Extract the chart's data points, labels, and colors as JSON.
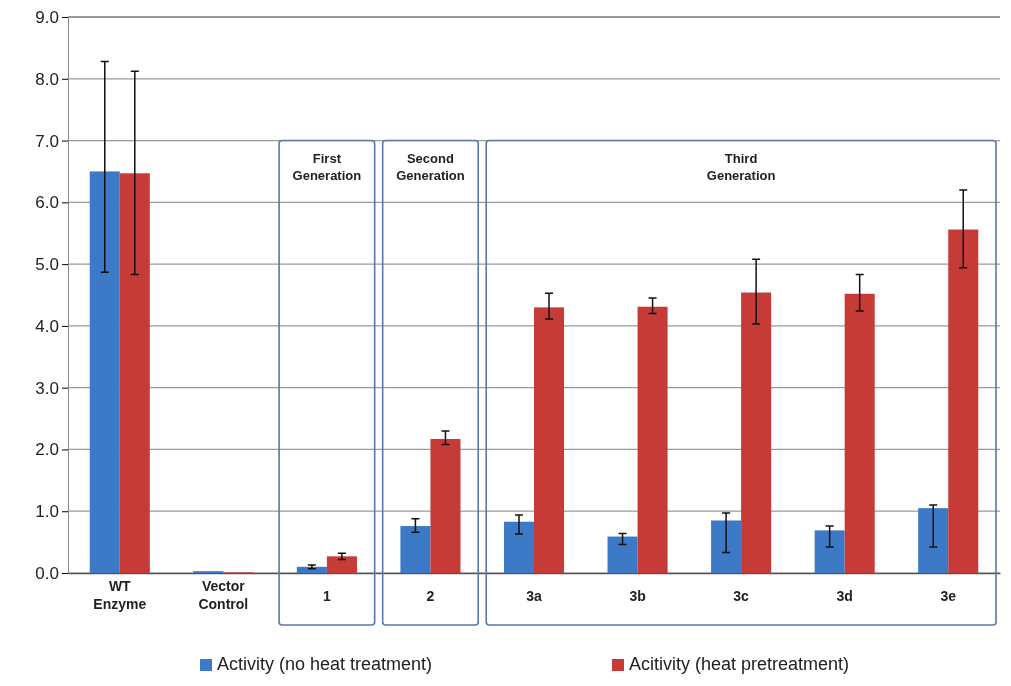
{
  "chart_data": {
    "type": "bar",
    "categories": [
      "WT Enzyme",
      "Vector Control",
      "1",
      "2",
      "3a",
      "3b",
      "3c",
      "3d",
      "3e"
    ],
    "series": [
      {
        "name": "Activity (no heat treatment)",
        "color": "#3c7ac8",
        "values": [
          6.5,
          0.03,
          0.1,
          0.76,
          0.83,
          0.59,
          0.85,
          0.69,
          1.05
        ],
        "errors": [
          [
            4.87,
            8.28
          ],
          null,
          [
            0.07,
            0.13
          ],
          [
            0.66,
            0.88
          ],
          [
            0.63,
            0.94
          ],
          [
            0.46,
            0.64
          ],
          [
            0.33,
            0.97
          ],
          [
            0.42,
            0.76
          ],
          [
            0.42,
            1.1
          ]
        ]
      },
      {
        "name": "Acitivity (heat pretreatment)",
        "color": "#c63b37",
        "values": [
          6.47,
          0.01,
          0.27,
          2.17,
          4.3,
          4.31,
          4.54,
          4.52,
          5.56
        ],
        "errors": [
          [
            4.83,
            8.12
          ],
          null,
          [
            0.22,
            0.32
          ],
          [
            2.08,
            2.3
          ],
          [
            4.11,
            4.53
          ],
          [
            4.2,
            4.45
          ],
          [
            4.03,
            5.08
          ],
          [
            4.24,
            4.83
          ],
          [
            4.94,
            6.2
          ]
        ]
      }
    ],
    "ylim": [
      0,
      9
    ],
    "yticks": [
      {
        "value": 0,
        "label": "0.0"
      },
      {
        "value": 1,
        "label": "1.0"
      },
      {
        "value": 2,
        "label": "2.0"
      },
      {
        "value": 3,
        "label": "3.0"
      },
      {
        "value": 4,
        "label": "4.0"
      },
      {
        "value": 5,
        "label": "5.0"
      },
      {
        "value": 6,
        "label": "6.0"
      },
      {
        "value": 7,
        "label": "7.0"
      },
      {
        "value": 8,
        "label": "8.0"
      },
      {
        "value": 9,
        "label": "9.0"
      }
    ],
    "grid": "y",
    "legend": "bottom",
    "annotations": [
      "First Generation",
      "Second Generation",
      "Third Generation"
    ]
  }
}
